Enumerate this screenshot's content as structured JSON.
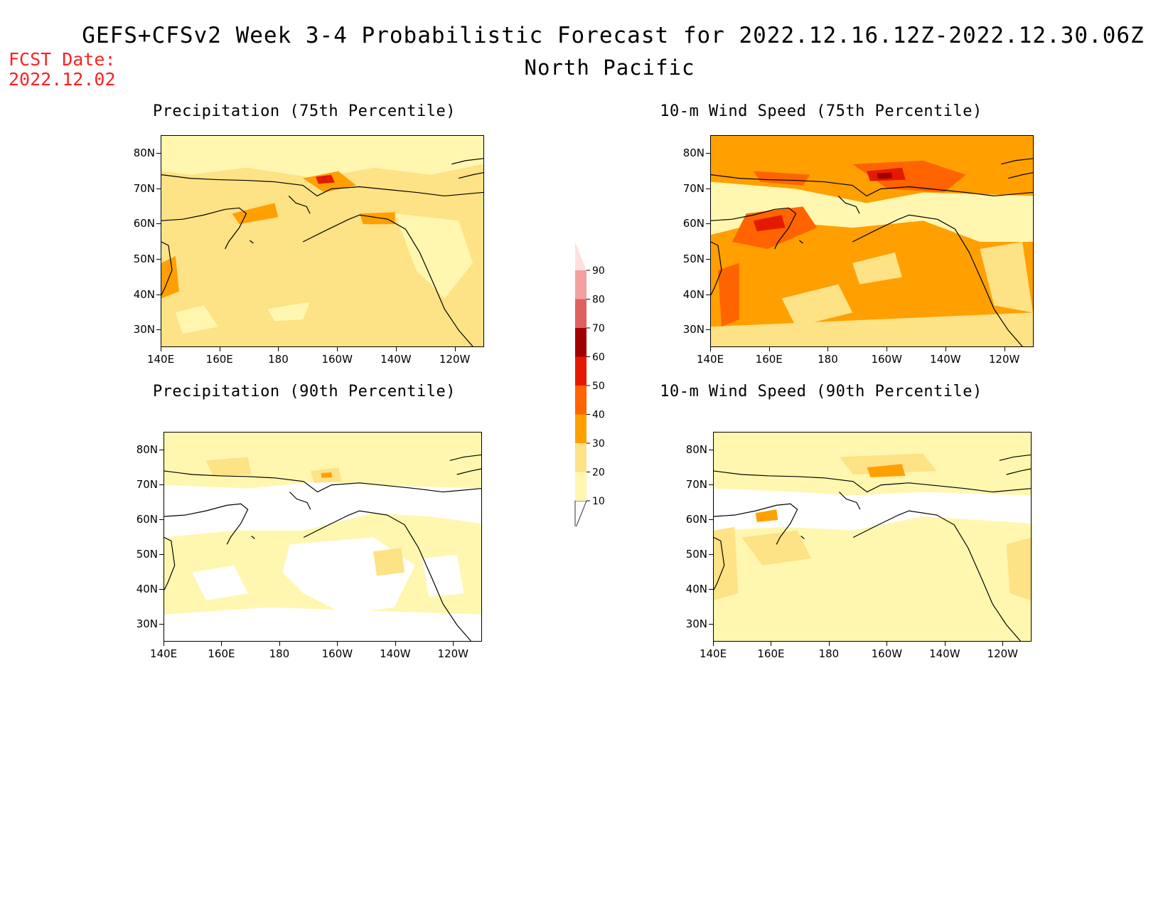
{
  "header": {
    "title": "GEFS+CFSv2 Week 3-4 Probabilistic Forecast for 2022.12.16.12Z-2022.12.30.06Z",
    "region": "North Pacific",
    "fcst_label": "FCST Date:",
    "fcst_date": "2022.12.02"
  },
  "axes": {
    "x_ticks": [
      "140E",
      "160E",
      "180",
      "160W",
      "140W",
      "120W"
    ],
    "y_ticks": [
      "80N",
      "70N",
      "60N",
      "50N",
      "40N",
      "30N"
    ]
  },
  "panels": [
    {
      "id": "precip75",
      "title": "Precipitation (75th Percentile)",
      "dominant_level": "20-30"
    },
    {
      "id": "wind75",
      "title": "10-m Wind Speed (75th Percentile)",
      "dominant_level": "30-40"
    },
    {
      "id": "precip90",
      "title": "Precipitation (90th Percentile)",
      "dominant_level": "10-20"
    },
    {
      "id": "wind90",
      "title": "10-m Wind Speed (90th Percentile)",
      "dominant_level": "10-20"
    }
  ],
  "colorbar": {
    "levels": [
      "10",
      "20",
      "30",
      "40",
      "50",
      "60",
      "70",
      "80",
      "90"
    ],
    "colors": {
      "lt10": "#ffffff",
      "10-20": "#fff7b0",
      "20-30": "#fde286",
      "30-40": "#ffa000",
      "40-50": "#ff6400",
      "50-60": "#e41a00",
      "60-70": "#a00000",
      "70-80": "#e06060",
      "80-90": "#f4a0a0",
      "gt90": "#ffe0e0"
    }
  }
}
